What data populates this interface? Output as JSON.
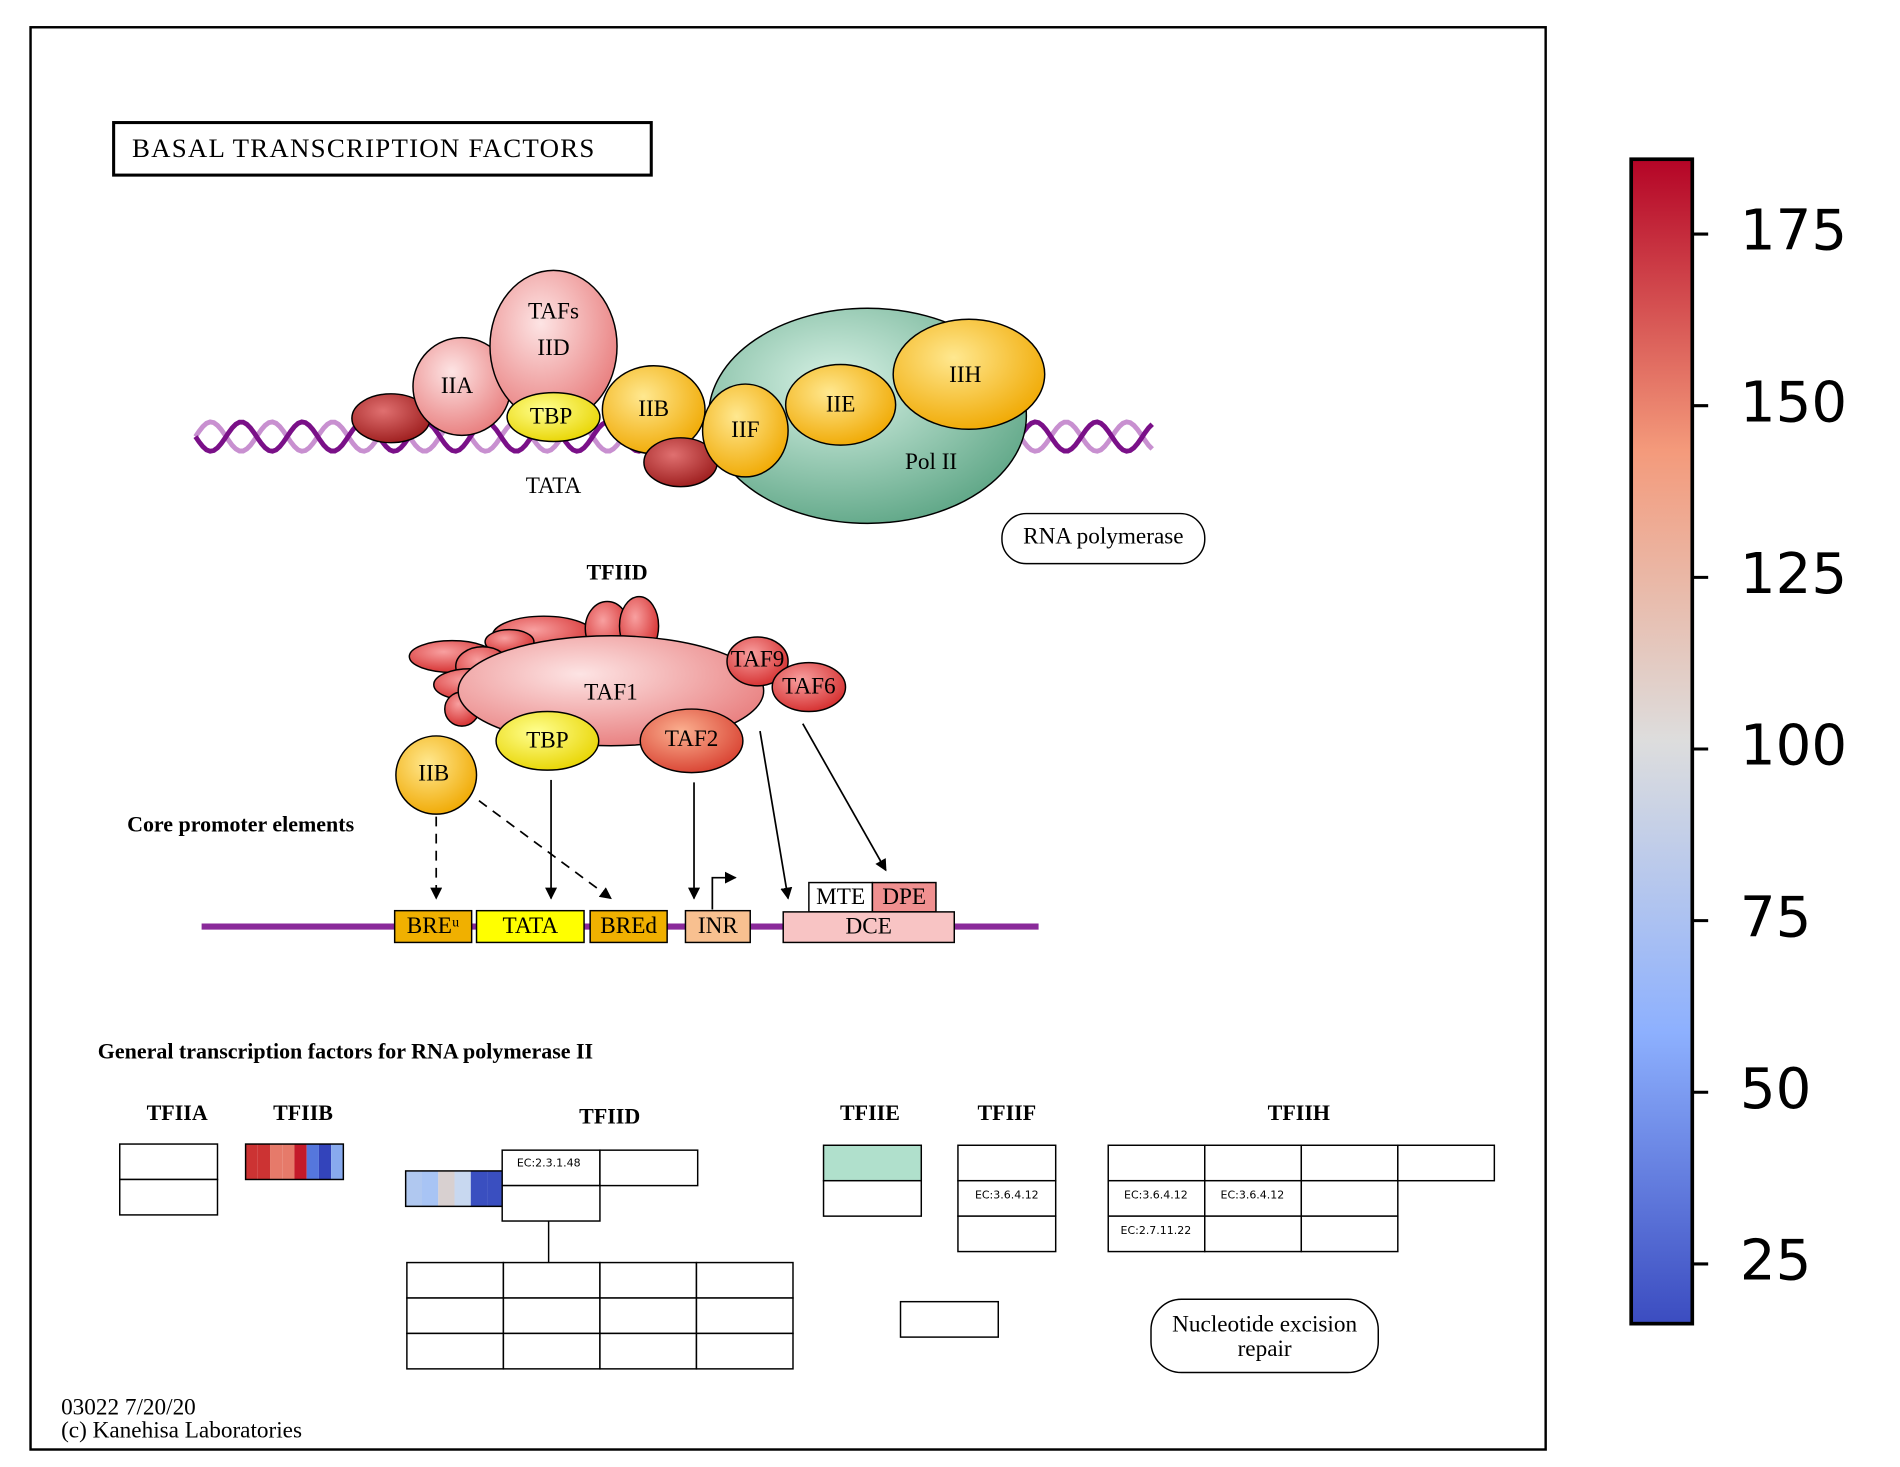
{
  "title": "BASAL TRANSCRIPTION FACTORS",
  "complex": {
    "tafs": "TAFs",
    "iid": "IID",
    "iia": "IIA",
    "tbp": "TBP",
    "iib": "IIB",
    "iif": "IIF",
    "iie": "IIE",
    "iih": "IIH",
    "pol_ii": "Pol II",
    "tata": "TATA",
    "rna_polymerase": "RNA polymerase"
  },
  "tfiid": {
    "title": "TFIID",
    "taf1": "TAF1",
    "taf9": "TAF9",
    "taf6": "TAF6",
    "tbp": "TBP",
    "taf2": "TAF2",
    "iib": "IIB"
  },
  "promoter": {
    "title": "Core promoter elements",
    "elements": [
      "BREᵘ",
      "TATA",
      "BREd",
      "INR",
      "MTE",
      "DPE",
      "DCE"
    ]
  },
  "gtf": {
    "title": "General transcription factors for RNA polymerase II",
    "headers": [
      "TFIIA",
      "TFIIB",
      "TFIID",
      "TFIIE",
      "TFIIF",
      "TFIIH"
    ],
    "ec": {
      "tfiid": "EC:2.3.1.48",
      "tfiif": "EC:3.6.4.12",
      "tfiih": [
        "EC:3.6.4.12",
        "EC:3.6.4.12",
        "EC:2.7.11.22"
      ]
    },
    "nucleotide_excision_repair": [
      "Nucleotide excision",
      "repair"
    ]
  },
  "footer": [
    "03022 7/20/20",
    "(c) Kanehisa Laboratories"
  ],
  "colorbar": {
    "lim": [
      16.3,
      185.9
    ],
    "ticks": [
      25,
      50,
      75,
      100,
      125,
      150,
      175
    ]
  }
}
